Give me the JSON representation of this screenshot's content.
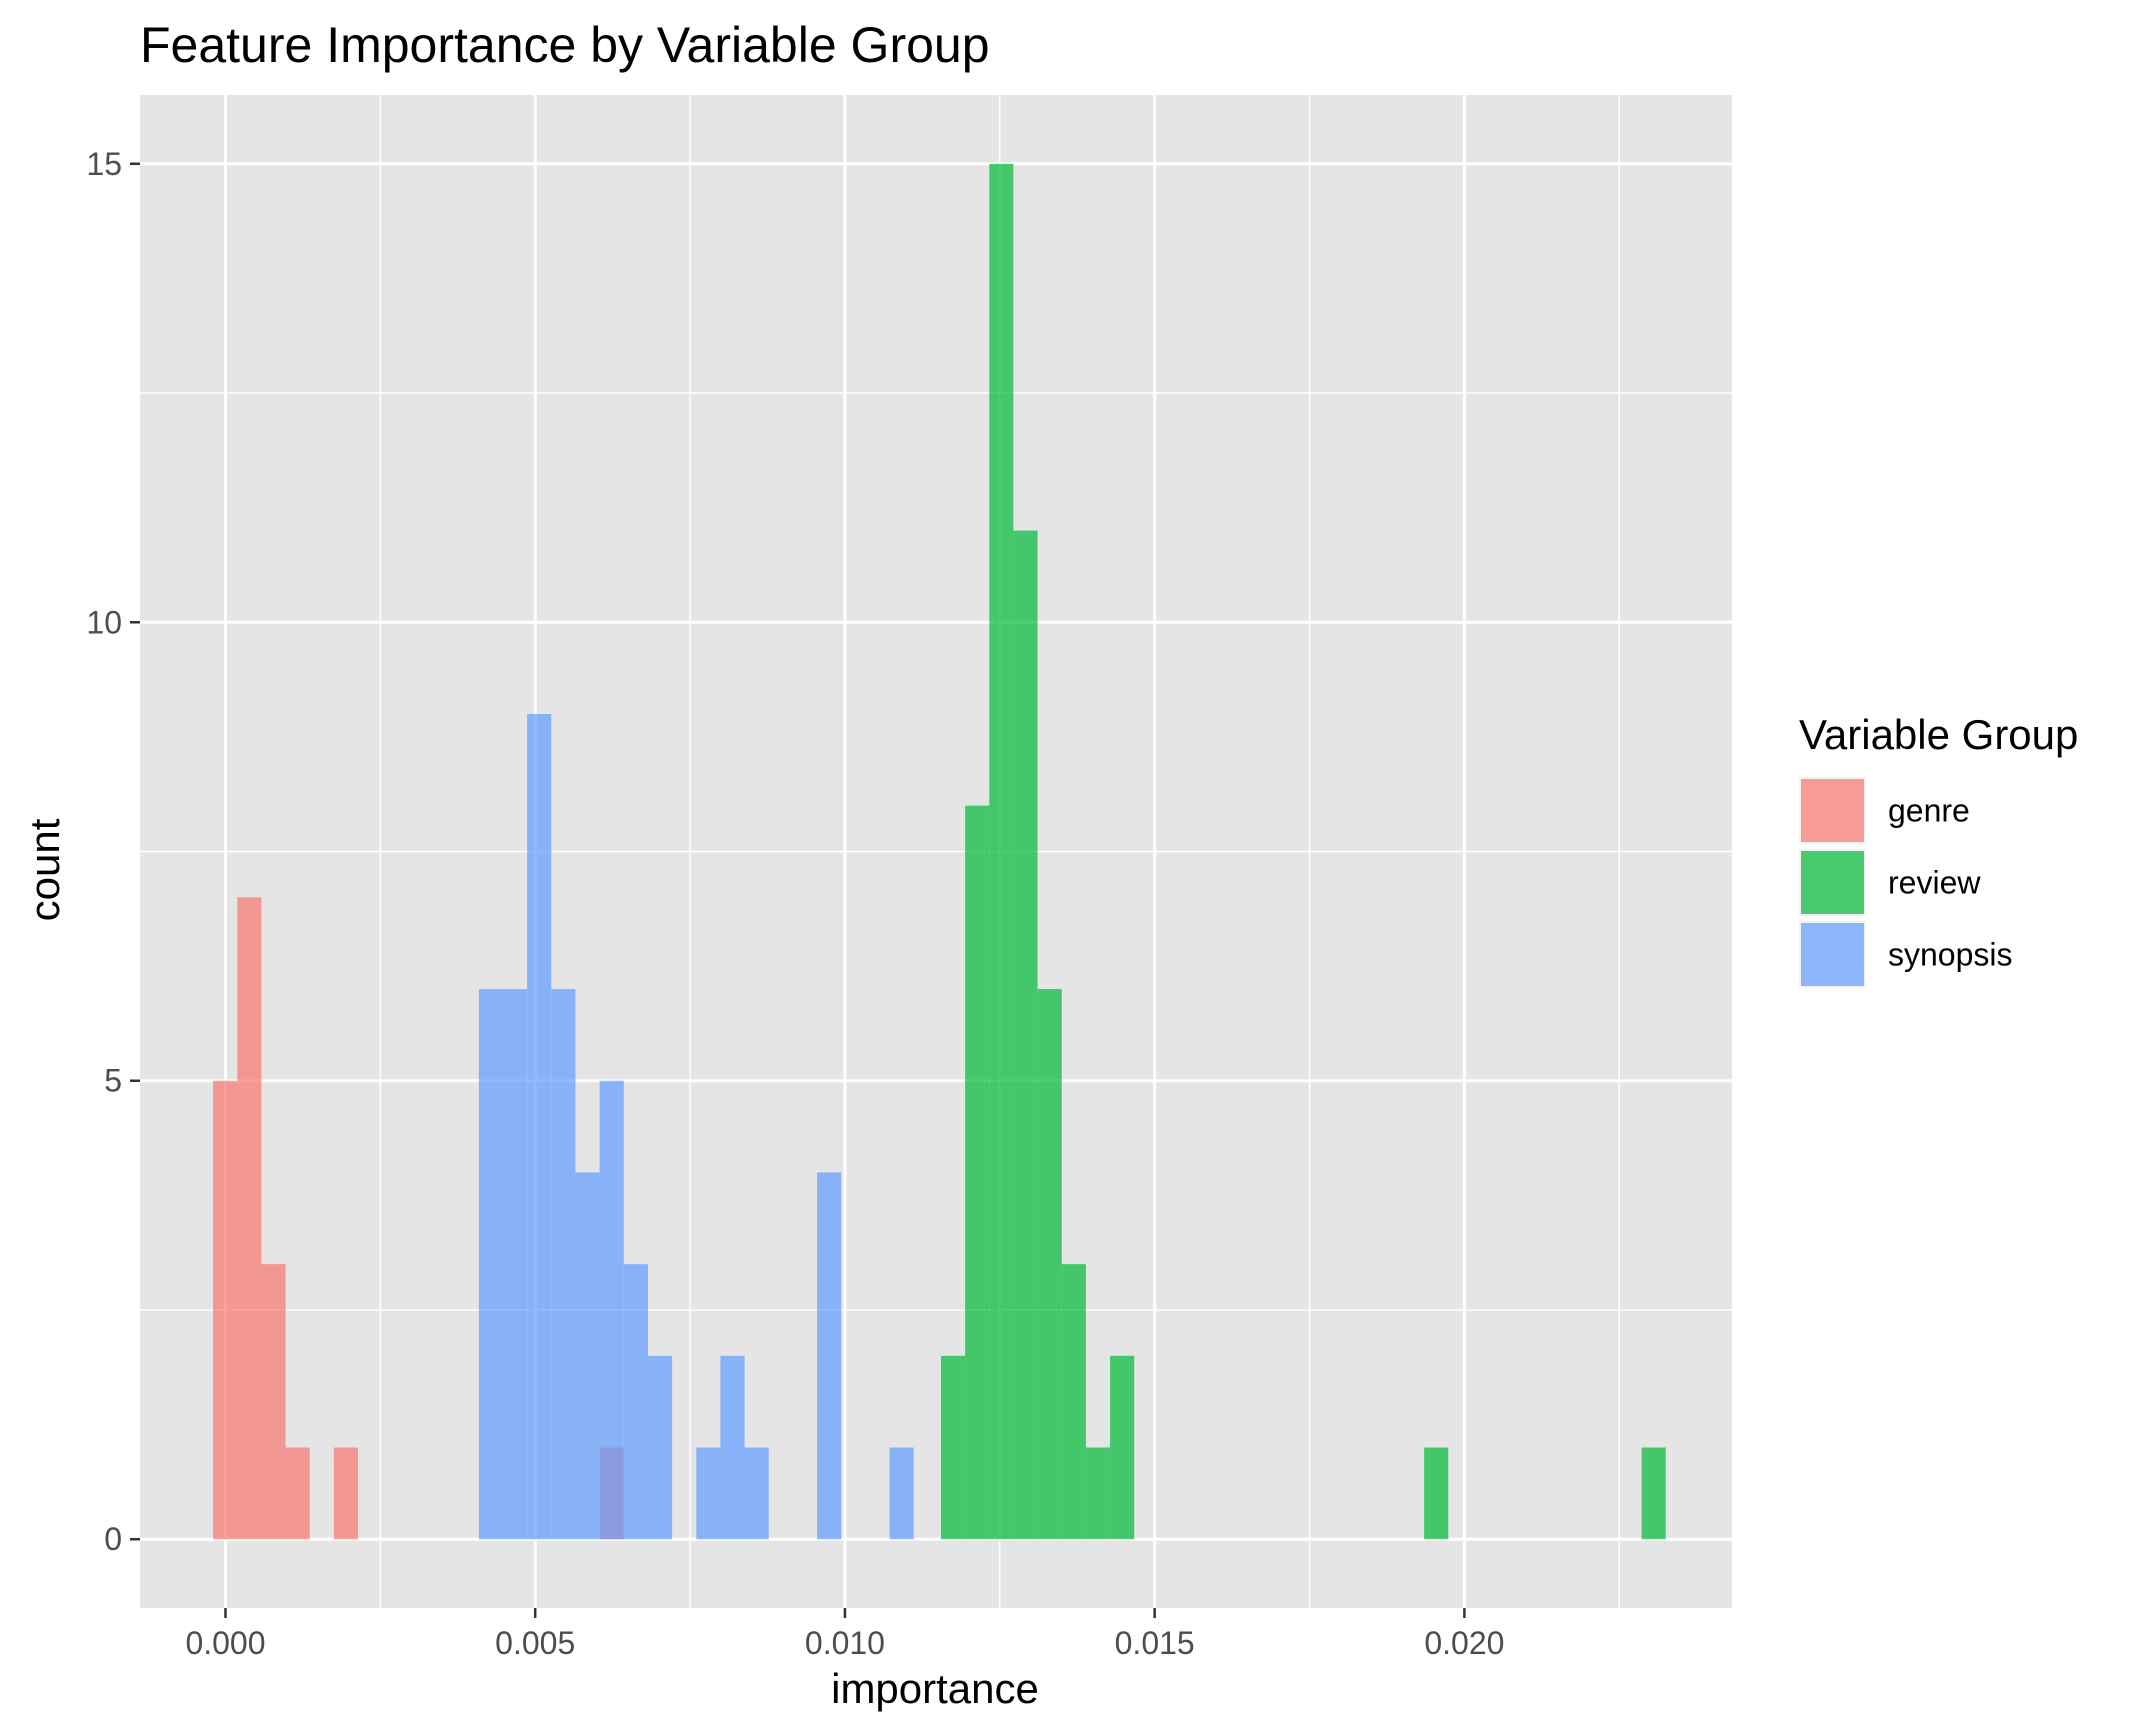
{
  "chart_data": {
    "type": "histogram",
    "title": "Feature Importance by Variable Group",
    "xlabel": "importance",
    "ylabel": "count",
    "xlim": [
      -0.00138,
      0.02432
    ],
    "ylim": [
      -0.75,
      15.75
    ],
    "x_ticks": [
      {
        "value": 0.0,
        "label": "0.000"
      },
      {
        "value": 0.005,
        "label": "0.005"
      },
      {
        "value": 0.01,
        "label": "0.010"
      },
      {
        "value": 0.015,
        "label": "0.015"
      },
      {
        "value": 0.02,
        "label": "0.020"
      }
    ],
    "y_ticks": [
      {
        "value": 0,
        "label": "0"
      },
      {
        "value": 5,
        "label": "5"
      },
      {
        "value": 10,
        "label": "10"
      },
      {
        "value": 15,
        "label": "15"
      }
    ],
    "grid": true,
    "bin_width": 0.00039,
    "legend": {
      "title": "Variable Group",
      "position": "right"
    },
    "series": [
      {
        "name": "genre",
        "color": "#F8766D",
        "bins": [
          {
            "x": -0.0002,
            "count": 5
          },
          {
            "x": 0.00019,
            "count": 7
          },
          {
            "x": 0.00058,
            "count": 3
          },
          {
            "x": 0.00097,
            "count": 1
          },
          {
            "x": 0.00175,
            "count": 1
          },
          {
            "x": 0.00604,
            "count": 1
          }
        ]
      },
      {
        "name": "review",
        "color": "#00BA38",
        "bins": [
          {
            "x": 0.01155,
            "count": 2
          },
          {
            "x": 0.01194,
            "count": 8
          },
          {
            "x": 0.01233,
            "count": 15
          },
          {
            "x": 0.01272,
            "count": 11
          },
          {
            "x": 0.01311,
            "count": 6
          },
          {
            "x": 0.0135,
            "count": 3
          },
          {
            "x": 0.01389,
            "count": 1
          },
          {
            "x": 0.01428,
            "count": 2
          },
          {
            "x": 0.01935,
            "count": 1
          },
          {
            "x": 0.02286,
            "count": 1
          }
        ]
      },
      {
        "name": "synopsis",
        "color": "#619CFF",
        "bins": [
          {
            "x": 0.00409,
            "count": 6
          },
          {
            "x": 0.00448,
            "count": 6
          },
          {
            "x": 0.00487,
            "count": 9
          },
          {
            "x": 0.00526,
            "count": 6
          },
          {
            "x": 0.00565,
            "count": 4
          },
          {
            "x": 0.00604,
            "count": 5
          },
          {
            "x": 0.00643,
            "count": 3
          },
          {
            "x": 0.00682,
            "count": 2
          },
          {
            "x": 0.0076,
            "count": 1
          },
          {
            "x": 0.00799,
            "count": 2
          },
          {
            "x": 0.00838,
            "count": 1
          },
          {
            "x": 0.00955,
            "count": 4
          },
          {
            "x": 0.01072,
            "count": 1
          }
        ]
      }
    ]
  }
}
